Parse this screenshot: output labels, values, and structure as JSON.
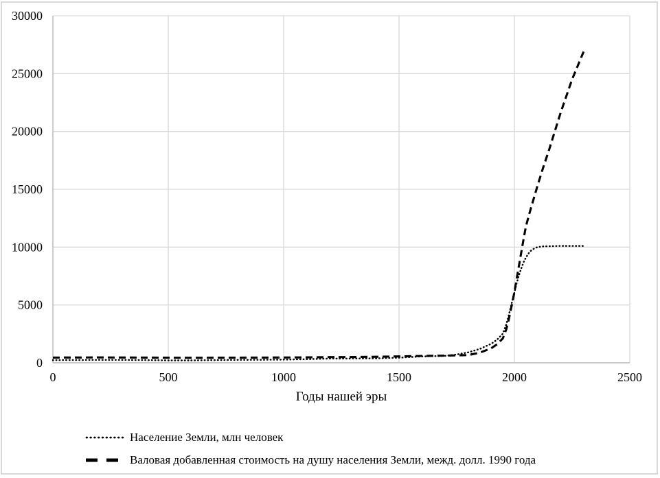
{
  "chart_data": {
    "type": "line",
    "title": "",
    "xlabel": "Годы нашей эры",
    "ylabel": "",
    "xlim": [
      0,
      2500
    ],
    "ylim": [
      0,
      30000
    ],
    "x_ticks": [
      0,
      500,
      1000,
      1500,
      2000,
      2500
    ],
    "y_ticks": [
      0,
      5000,
      10000,
      15000,
      20000,
      25000,
      30000
    ],
    "grid": true,
    "grid_color": "#d9d9d9",
    "axis_color": "#bfbfbf",
    "legend_position": "bottom-left",
    "x": [
      0,
      100,
      200,
      300,
      400,
      500,
      600,
      700,
      800,
      900,
      1000,
      1100,
      1200,
      1300,
      1400,
      1500,
      1600,
      1700,
      1750,
      1800,
      1850,
      1900,
      1925,
      1950,
      1965,
      1975,
      1990,
      2000,
      2010,
      2025,
      2040,
      2050,
      2065,
      2075,
      2090,
      2100,
      2125,
      2150,
      2200,
      2250,
      2300
    ],
    "series": [
      {
        "name": "Население Земли, млн человек",
        "line_style": "dotted",
        "color": "#000000",
        "y": [
          230,
          240,
          250,
          245,
          240,
          205,
          210,
          230,
          250,
          260,
          270,
          310,
          360,
          370,
          380,
          440,
          550,
          600,
          720,
          900,
          1200,
          1650,
          2000,
          2520,
          3330,
          4060,
          5280,
          6080,
          6900,
          7900,
          8700,
          9100,
          9550,
          9750,
          9920,
          10000,
          10060,
          10080,
          10100,
          10100,
          10100
        ]
      },
      {
        "name": "Валовая добавленная стоимость на душу населения Земли, межд. долл. 1990 года",
        "line_style": "dashed",
        "color": "#000000",
        "y": [
          450,
          455,
          460,
          455,
          450,
          440,
          435,
          440,
          445,
          450,
          455,
          470,
          490,
          500,
          520,
          550,
          590,
          615,
          640,
          670,
          870,
          1260,
          1600,
          2110,
          2900,
          3700,
          5100,
          6100,
          7300,
          9000,
          10700,
          11800,
          12900,
          13600,
          14600,
          15300,
          16900,
          18400,
          21600,
          24500,
          26900
        ]
      }
    ]
  }
}
